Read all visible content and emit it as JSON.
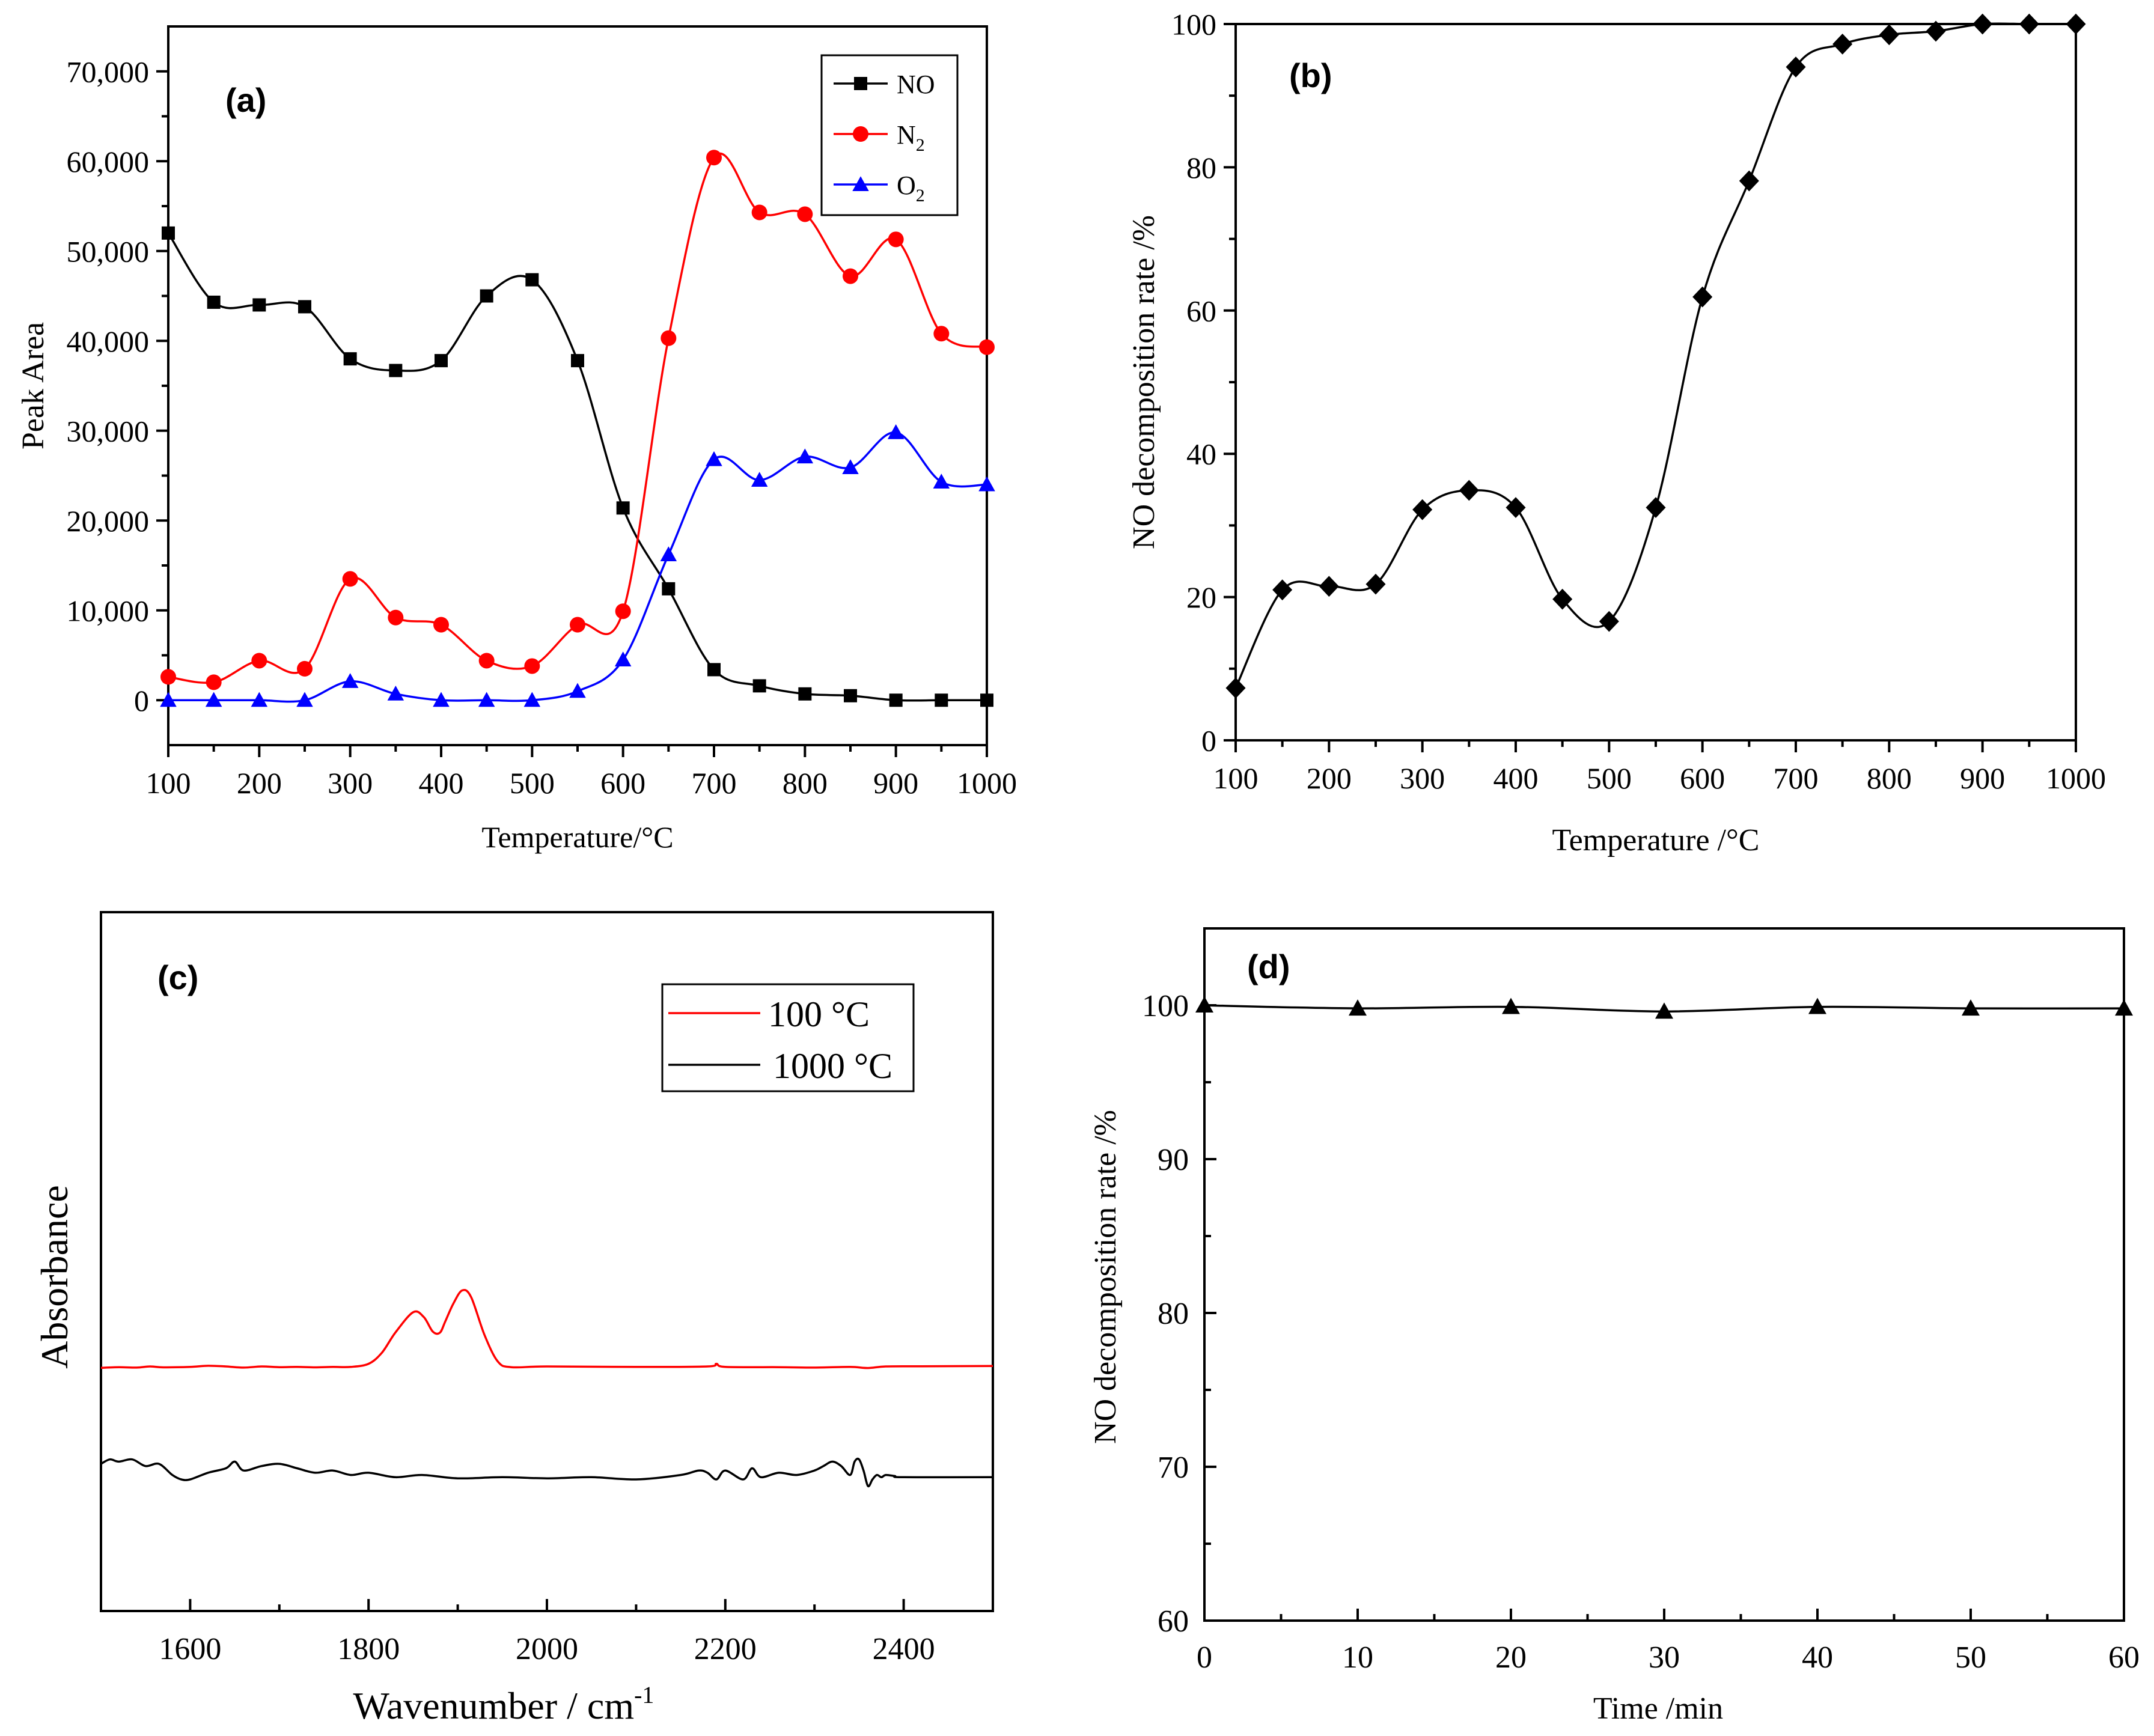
{
  "chart_data": [
    {
      "id": "a",
      "type": "line",
      "panel_label": "(a)",
      "xlabel": "Temperature/°C",
      "ylabel": "Peak Area",
      "xlim": [
        100,
        1000
      ],
      "ylim": [
        -5000,
        75000
      ],
      "xticks": [
        100,
        200,
        300,
        400,
        500,
        600,
        700,
        800,
        900,
        1000
      ],
      "xtick_labels": [
        "100",
        "200",
        "300",
        "400",
        "500",
        "600",
        "700",
        "800",
        "900",
        "1000"
      ],
      "yticks": [
        0,
        10000,
        20000,
        30000,
        40000,
        50000,
        60000,
        70000
      ],
      "ytick_labels": [
        "0",
        "10,000",
        "20,000",
        "30,000",
        "40,000",
        "50,000",
        "60,000",
        "70,000"
      ],
      "legend_position": "top-right",
      "x": [
        100,
        150,
        200,
        250,
        300,
        350,
        400,
        450,
        500,
        550,
        600,
        650,
        700,
        750,
        800,
        850,
        900,
        950,
        1000
      ],
      "series": [
        {
          "name": "NO",
          "legend_main": "NO",
          "legend_sub": "",
          "color": "#000000",
          "marker": "square",
          "values": [
            52000,
            44300,
            44000,
            43800,
            38000,
            36700,
            37800,
            45000,
            46800,
            37800,
            21400,
            12400,
            3400,
            1600,
            700,
            500,
            0,
            0,
            0
          ]
        },
        {
          "name": "N2",
          "legend_main": "N",
          "legend_sub": "2",
          "color": "#ff0000",
          "marker": "circle",
          "values": [
            2600,
            2000,
            4400,
            3500,
            13500,
            9200,
            8400,
            4400,
            3800,
            8400,
            9900,
            40300,
            60400,
            54300,
            54100,
            47200,
            51300,
            40800,
            39300
          ]
        },
        {
          "name": "O2",
          "legend_main": "O",
          "legend_sub": "2",
          "color": "#0000ff",
          "marker": "triangle",
          "values": [
            0,
            0,
            0,
            0,
            2100,
            700,
            0,
            0,
            0,
            1000,
            4500,
            16200,
            26800,
            24500,
            27100,
            25900,
            29800,
            24300,
            24000
          ]
        }
      ]
    },
    {
      "id": "b",
      "type": "scatter",
      "panel_label": "(b)",
      "xlabel": "Temperature /°C",
      "ylabel": "NO decomposition rate /%",
      "xlim": [
        100,
        1000
      ],
      "ylim": [
        0,
        100
      ],
      "xticks": [
        100,
        200,
        300,
        400,
        500,
        600,
        700,
        800,
        900,
        1000
      ],
      "xtick_labels": [
        "100",
        "200",
        "300",
        "400",
        "500",
        "600",
        "700",
        "800",
        "900",
        "1000"
      ],
      "yticks": [
        0,
        20,
        40,
        60,
        80,
        100
      ],
      "ytick_labels": [
        "0",
        "20",
        "40",
        "60",
        "80",
        "100"
      ],
      "x": [
        100,
        150,
        200,
        250,
        300,
        350,
        400,
        450,
        500,
        550,
        600,
        650,
        700,
        750,
        800,
        850,
        900,
        950,
        1000
      ],
      "series": [
        {
          "name": "NO decomposition rate",
          "color": "#000000",
          "marker": "diamond",
          "values": [
            7.3,
            21.0,
            21.5,
            21.8,
            32.2,
            34.9,
            32.5,
            19.7,
            16.6,
            32.5,
            61.9,
            78.1,
            94.0,
            97.2,
            98.5,
            99.0,
            100,
            100,
            100
          ]
        }
      ]
    },
    {
      "id": "c",
      "type": "line",
      "panel_label": "(c)",
      "xlabel_main": "Wavenumber / cm",
      "xlabel_sup": "-1",
      "ylabel": "Absorbance",
      "xlim": [
        1500,
        2500
      ],
      "xticks": [
        1600,
        1800,
        2000,
        2200,
        2400
      ],
      "xtick_labels": [
        "1600",
        "1800",
        "2000",
        "2200",
        "2400"
      ],
      "y_axis_ticks": "none",
      "legend_position": "top-right",
      "series": [
        {
          "name": "100 °C",
          "color": "#ff0000",
          "x": [
            1500,
            1520,
            1540,
            1555,
            1570,
            1600,
            1620,
            1640,
            1660,
            1680,
            1700,
            1720,
            1740,
            1760,
            1780,
            1800,
            1815,
            1830,
            1850,
            1862,
            1872,
            1880,
            1886,
            1895,
            1905,
            1915,
            1930,
            1945,
            1960,
            2000,
            2100,
            2180,
            2190,
            2200,
            2260,
            2300,
            2340,
            2360,
            2380,
            2420,
            2500
          ],
          "values": [
            0.502,
            0.505,
            0.503,
            0.508,
            0.504,
            0.506,
            0.511,
            0.508,
            0.503,
            0.508,
            0.505,
            0.506,
            0.504,
            0.506,
            0.506,
            0.52,
            0.57,
            0.66,
            0.752,
            0.73,
            0.665,
            0.66,
            0.71,
            0.79,
            0.85,
            0.82,
            0.65,
            0.53,
            0.505,
            0.508,
            0.506,
            0.508,
            0.52,
            0.506,
            0.505,
            0.503,
            0.506,
            0.501,
            0.508,
            0.509,
            0.51
          ]
        },
        {
          "name": "1000 °C",
          "color": "#000000",
          "x": [
            1500,
            1510,
            1520,
            1535,
            1550,
            1565,
            1580,
            1590,
            1600,
            1620,
            1640,
            1650,
            1660,
            1680,
            1700,
            1720,
            1740,
            1760,
            1780,
            1800,
            1830,
            1860,
            1900,
            1950,
            2000,
            2050,
            2100,
            2150,
            2170,
            2180,
            2190,
            2200,
            2220,
            2230,
            2240,
            2260,
            2280,
            2300,
            2310,
            2320,
            2330,
            2340,
            2345,
            2350,
            2355,
            2360,
            2365,
            2370,
            2375,
            2380,
            2390,
            2400,
            2500
          ],
          "values": [
            0.07,
            0.09,
            0.08,
            0.09,
            0.06,
            0.07,
            0.02,
            0.0,
            0.0,
            0.03,
            0.05,
            0.08,
            0.04,
            0.06,
            0.07,
            0.05,
            0.03,
            0.04,
            0.02,
            0.03,
            0.01,
            0.02,
            0.005,
            0.01,
            0.005,
            0.01,
            0.0,
            0.02,
            0.04,
            0.03,
            0.0,
            0.04,
            0.0,
            0.05,
            0.01,
            0.03,
            0.02,
            0.04,
            0.06,
            0.08,
            0.06,
            0.02,
            0.08,
            0.09,
            0.04,
            -0.03,
            0.0,
            0.02,
            0.01,
            0.02,
            0.015,
            0.01,
            0.01
          ]
        }
      ]
    },
    {
      "id": "d",
      "type": "line",
      "panel_label": "(d)",
      "xlabel": "Time /min",
      "ylabel": "NO decomposition rate /%",
      "xlim": [
        0,
        60
      ],
      "ylim": [
        60,
        105
      ],
      "xticks": [
        0,
        10,
        20,
        30,
        40,
        50,
        60
      ],
      "xtick_labels": [
        "0",
        "10",
        "20",
        "30",
        "40",
        "50",
        "60"
      ],
      "yticks": [
        60,
        70,
        80,
        90,
        100
      ],
      "ytick_labels": [
        "60",
        "70",
        "80",
        "90",
        "100"
      ],
      "x": [
        0,
        10,
        20,
        30,
        40,
        50,
        60
      ],
      "series": [
        {
          "name": "NO decomposition rate",
          "color": "#000000",
          "marker": "triangle",
          "values": [
            100,
            99.8,
            99.9,
            99.6,
            99.9,
            99.8,
            99.8
          ]
        }
      ]
    }
  ]
}
